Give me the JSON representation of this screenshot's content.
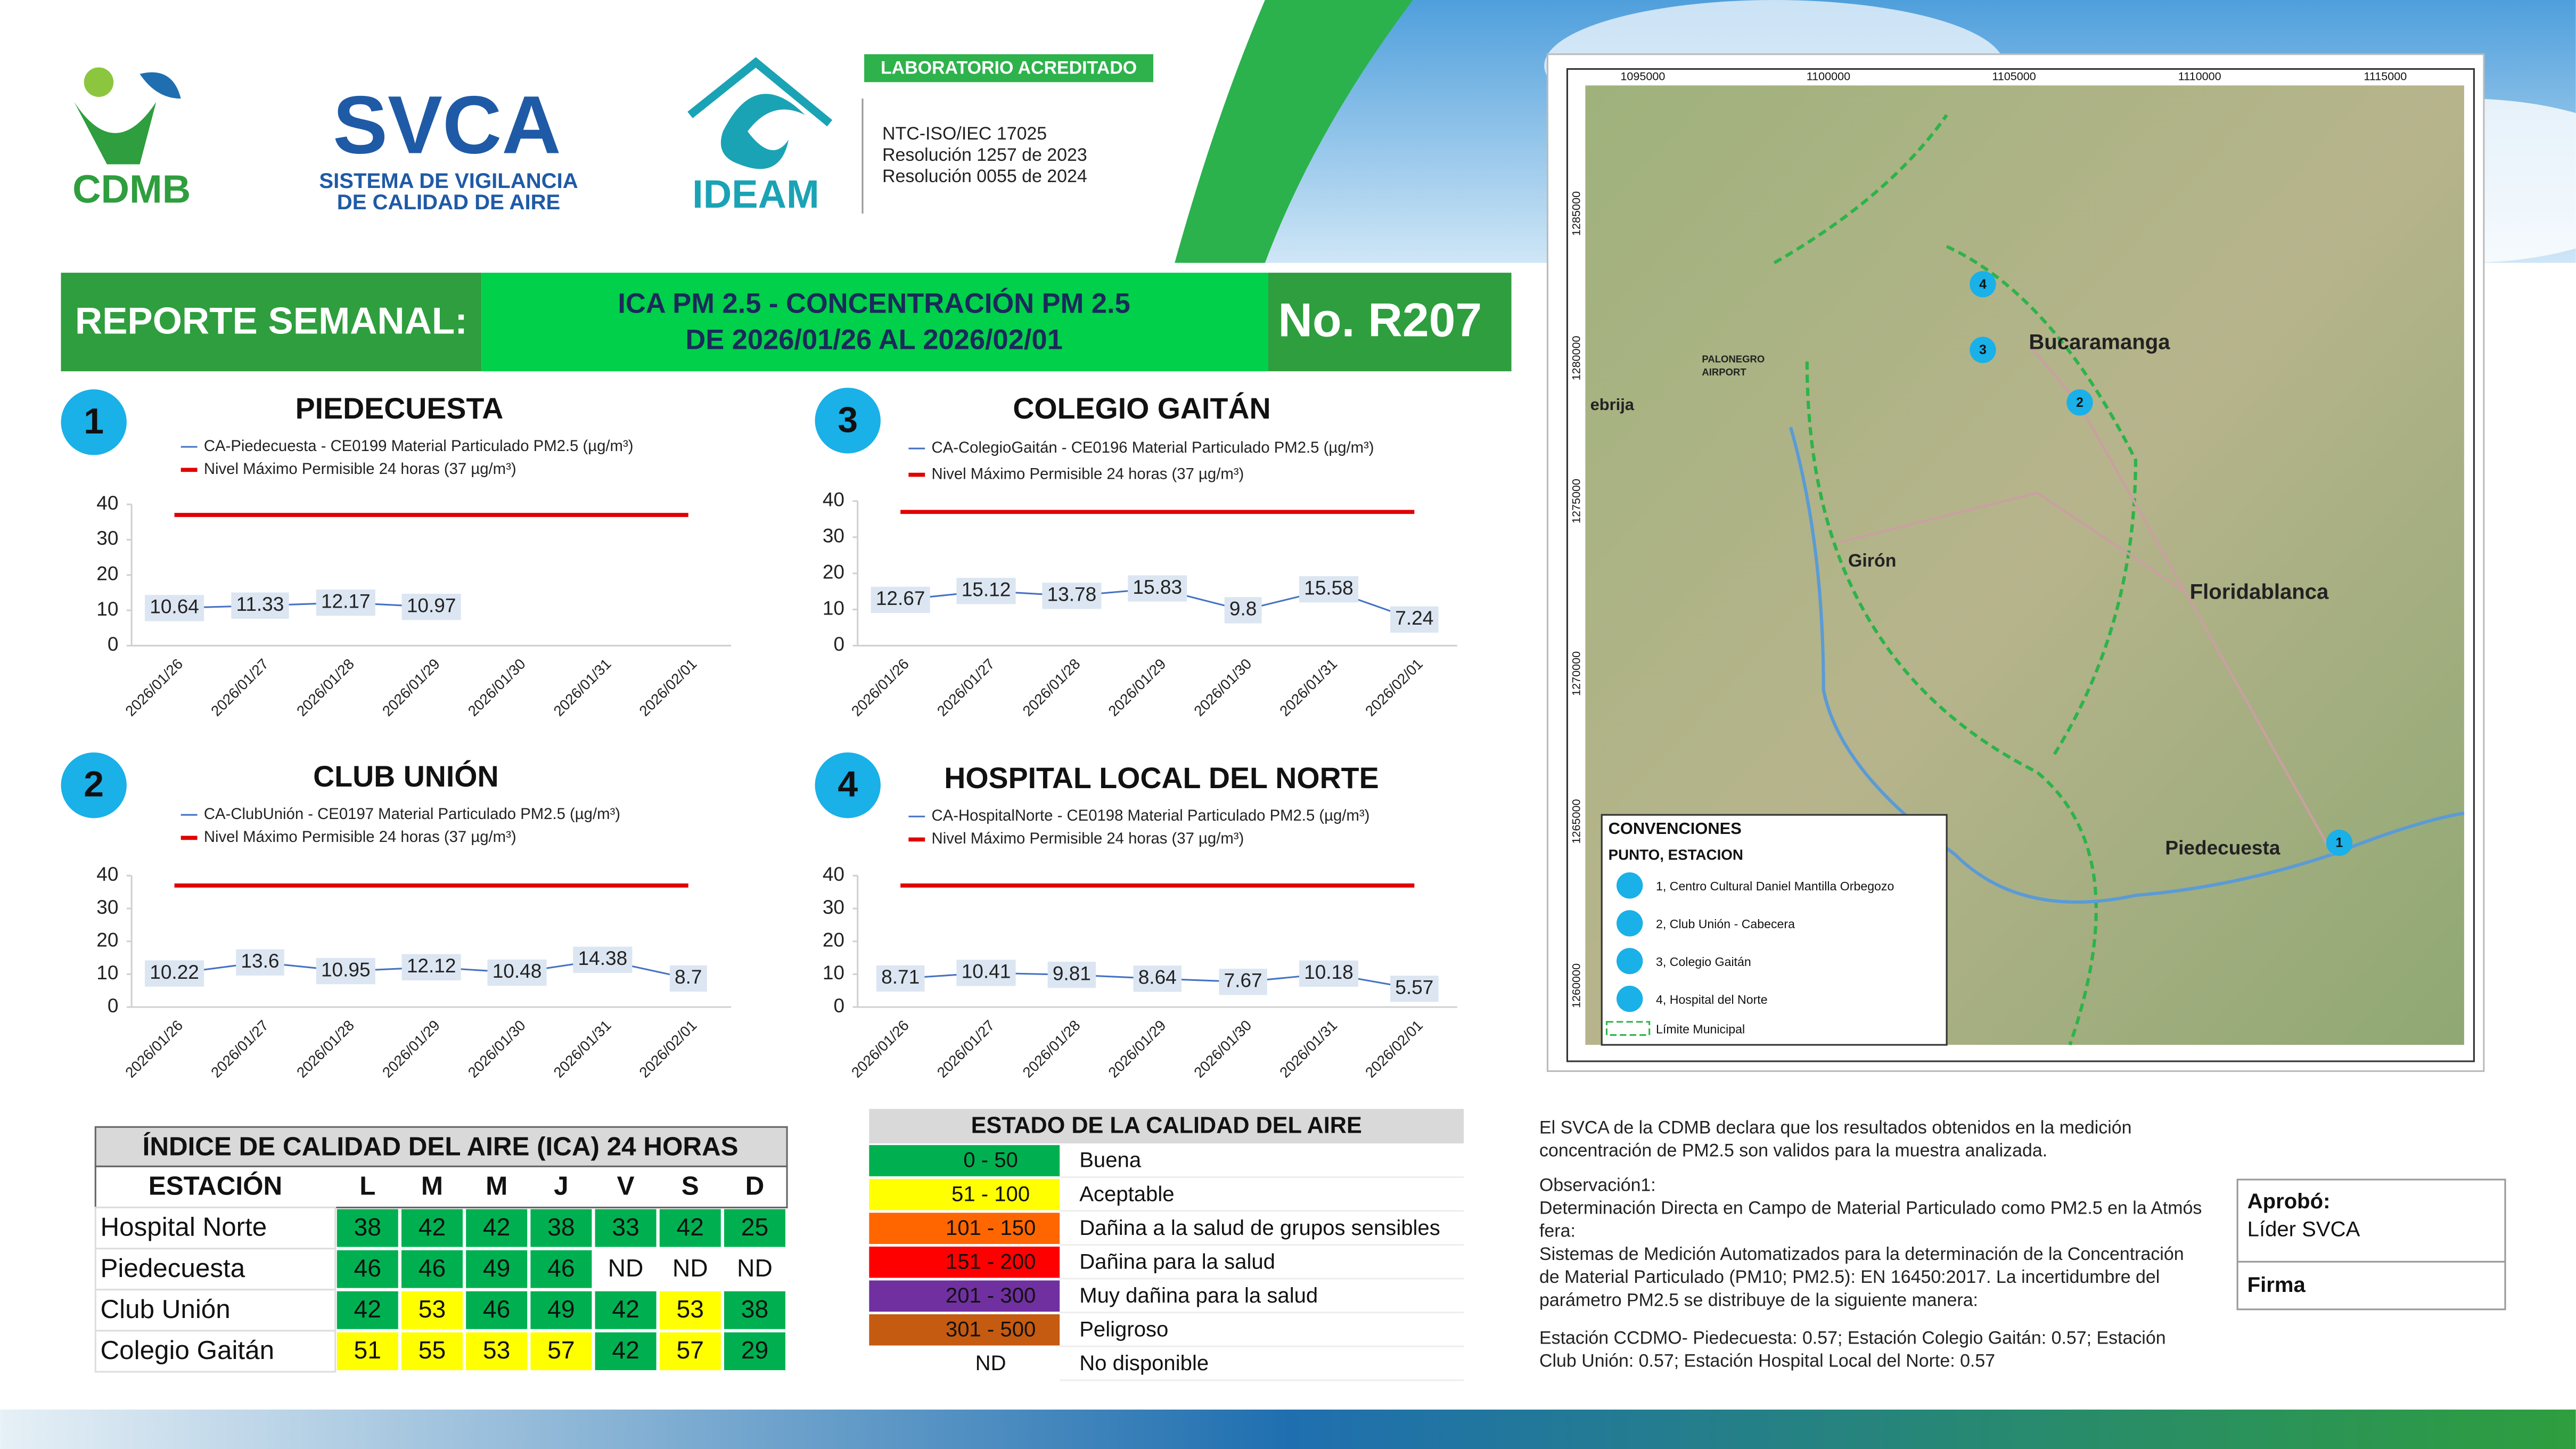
{
  "header": {
    "cdmb": "CDMB",
    "svca": "SVCA",
    "svca_sub1": "SISTEMA DE VIGILANCIA",
    "svca_sub2": "DE CALIDAD DE AIRE",
    "ideam": "IDEAM",
    "lab": "LABORATORIO ACREDITADO",
    "lab_lines": [
      "NTC-ISO/IEC 17025",
      "Resolución 1257 de 2023",
      "Resolución 0055 de 2024"
    ]
  },
  "banner": {
    "left": "REPORTE SEMANAL:",
    "middle": [
      "ICA PM 2.5 - CONCENTRACIÓN PM 2.5",
      "DE 2026/01/26 AL 2026/02/01"
    ],
    "right": "No. R207"
  },
  "chart_data": [
    {
      "type": "line",
      "number": "1",
      "title": "PIEDECUESTA",
      "categories": [
        "2026/01/26",
        "2026/01/27",
        "2026/01/28",
        "2026/01/29",
        "2026/01/30",
        "2026/01/31",
        "2026/02/01"
      ],
      "ylim": [
        0,
        40
      ],
      "yticks": [
        0,
        10,
        20,
        30,
        40
      ],
      "series": [
        {
          "name": "CA-Piedecuesta - CE0199 Material Particulado PM2.5 (µg/m³)",
          "color": "#4472c4",
          "values": [
            10.64,
            11.33,
            12.17,
            10.97,
            null,
            null,
            null
          ]
        },
        {
          "name": "Nivel Máximo Permisible 24 horas (37 µg/m³)",
          "color": "#e00000",
          "values": [
            37,
            37,
            37,
            37,
            37,
            37,
            37
          ]
        }
      ]
    },
    {
      "type": "line",
      "number": "2",
      "title": "CLUB UNIÓN",
      "categories": [
        "2026/01/26",
        "2026/01/27",
        "2026/01/28",
        "2026/01/29",
        "2026/01/30",
        "2026/01/31",
        "2026/02/01"
      ],
      "ylim": [
        0,
        40
      ],
      "yticks": [
        0,
        10,
        20,
        30,
        40
      ],
      "series": [
        {
          "name": "CA-ClubUnión - CE0197 Material Particulado PM2.5 (µg/m³)",
          "color": "#4472c4",
          "values": [
            10.22,
            13.6,
            10.95,
            12.12,
            10.48,
            14.38,
            8.7
          ]
        },
        {
          "name": "Nivel Máximo Permisible 24 horas (37 µg/m³)",
          "color": "#e00000",
          "values": [
            37,
            37,
            37,
            37,
            37,
            37,
            37
          ]
        }
      ]
    },
    {
      "type": "line",
      "number": "3",
      "title": "COLEGIO GAITÁN",
      "categories": [
        "2026/01/26",
        "2026/01/27",
        "2026/01/28",
        "2026/01/29",
        "2026/01/30",
        "2026/01/31",
        "2026/02/01"
      ],
      "ylim": [
        0,
        40
      ],
      "yticks": [
        0,
        10,
        20,
        30,
        40
      ],
      "series": [
        {
          "name": "CA-ColegioGaitán  - CE0196 Material Particulado PM2.5 (µg/m³)",
          "color": "#4472c4",
          "values": [
            12.67,
            15.12,
            13.78,
            15.83,
            9.8,
            15.58,
            7.24
          ]
        },
        {
          "name": "Nivel Máximo Permisible 24 horas (37 µg/m³)",
          "color": "#e00000",
          "values": [
            37,
            37,
            37,
            37,
            37,
            37,
            37
          ]
        }
      ]
    },
    {
      "type": "line",
      "number": "4",
      "title": "HOSPITAL LOCAL DEL NORTE",
      "categories": [
        "2026/01/26",
        "2026/01/27",
        "2026/01/28",
        "2026/01/29",
        "2026/01/30",
        "2026/01/31",
        "2026/02/01"
      ],
      "ylim": [
        0,
        40
      ],
      "yticks": [
        0,
        10,
        20,
        30,
        40
      ],
      "series": [
        {
          "name": "CA-HospitalNorte - CE0198 Material Particulado PM2.5 (µg/m³)",
          "color": "#4472c4",
          "values": [
            8.71,
            10.41,
            9.81,
            8.64,
            7.67,
            10.18,
            5.57
          ]
        },
        {
          "name": "Nivel Máximo Permisible 24 horas (37 µg/m³)",
          "color": "#e00000",
          "values": [
            37,
            37,
            37,
            37,
            37,
            37,
            37
          ]
        }
      ]
    }
  ],
  "ica_table": {
    "title": "ÍNDICE DE CALIDAD DEL AIRE (ICA) 24 HORAS",
    "header": [
      "ESTACIÓN",
      "L",
      "M",
      "M",
      "J",
      "V",
      "S",
      "D"
    ],
    "rows": [
      {
        "station": "Hospital Norte",
        "values": [
          38,
          42,
          42,
          38,
          33,
          42,
          25
        ],
        "colors": [
          "#00b050",
          "#00b050",
          "#00b050",
          "#00b050",
          "#00b050",
          "#00b050",
          "#00b050"
        ]
      },
      {
        "station": "Piedecuesta",
        "values": [
          46,
          46,
          49,
          46,
          "ND",
          "ND",
          "ND"
        ],
        "colors": [
          "#00b050",
          "#00b050",
          "#00b050",
          "#00b050",
          "#ffffff",
          "#ffffff",
          "#ffffff"
        ]
      },
      {
        "station": "Club Unión",
        "values": [
          42,
          53,
          46,
          49,
          42,
          53,
          38
        ],
        "colors": [
          "#00b050",
          "#ffff00",
          "#00b050",
          "#00b050",
          "#00b050",
          "#ffff00",
          "#00b050"
        ]
      },
      {
        "station": "Colegio Gaitán",
        "values": [
          51,
          55,
          53,
          57,
          42,
          57,
          29
        ],
        "colors": [
          "#ffff00",
          "#ffff00",
          "#ffff00",
          "#ffff00",
          "#00b050",
          "#ffff00",
          "#00b050"
        ]
      }
    ]
  },
  "estado_table": {
    "title": "ESTADO DE LA CALIDAD DEL AIRE",
    "rows": [
      {
        "range": "0 - 50",
        "label": "Buena",
        "color": "#00b050"
      },
      {
        "range": "51 - 100",
        "label": "Aceptable",
        "color": "#ffff00"
      },
      {
        "range": "101 - 150",
        "label": "Dañina a la salud de grupos sensibles",
        "color": "#ff6600"
      },
      {
        "range": "151 - 200",
        "label": "Dañina para la salud",
        "color": "#ff0000"
      },
      {
        "range": "201 - 300",
        "label": "Muy dañina para la salud",
        "color": "#7030a0"
      },
      {
        "range": "301 - 500",
        "label": "Peligroso",
        "color": "#c55a11"
      },
      {
        "range": "ND",
        "label": "No disponible"
      }
    ]
  },
  "notes": [
    [
      "El SVCA  de la CDMB declara que los resultados obtenidos en la medición",
      "concentración de PM2.5 son validos para la muestra  analizada."
    ],
    [
      "Observación1:",
      "Determinación Directa en Campo de Material Particulado como PM2.5 en la Atmós",
      "fera:",
      "Sistemas de Medición Automatizados para la  determinación de la Concentración",
      "de Material Particulado (PM10;  PM2.5): EN 16450:2017. La incertidumbre del",
      "parámetro PM2.5 se distribuye de la siguiente manera:"
    ],
    [
      "Estación CCDMO- Piedecuesta: 0.57; Estación Colegio Gaitán: 0.57; Estación",
      "Club Unión: 0.57; Estación Hospital Local del Norte: 0.57"
    ]
  ],
  "approval": {
    "label": "Aprobó:",
    "name": "Líder SVCA",
    "sign": "Firma"
  },
  "map": {
    "xticks": [
      "1095000",
      "1100000",
      "1105000",
      "1110000",
      "1115000"
    ],
    "yticks": [
      "1285000",
      "1280000",
      "1275000",
      "1270000",
      "1265000",
      "1260000"
    ],
    "places": [
      "Bucaramanga",
      "Girón",
      "Floridablanca",
      "Piedecuesta",
      "ebrija",
      "PALONEGRO",
      "AIRPORT"
    ],
    "stations": [
      "4",
      "3",
      "2",
      "1"
    ],
    "legend_title": "CONVENCIONES",
    "legend_sub": "PUNTO, ESTACION",
    "legend_items": [
      "1, Centro Cultural Daniel Mantilla Orbegozo",
      "2, Club Unión - Cabecera",
      "3, Colegio Gaitán",
      "4, Hospital del Norte"
    ],
    "limit": "Límite Municipal"
  }
}
